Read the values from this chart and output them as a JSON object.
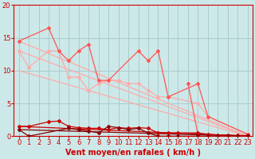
{
  "background_color": "#cde8e8",
  "grid_color": "#aacccc",
  "xlabel": "Vent moyen/en rafales ( km/h )",
  "xlabel_color": "#cc0000",
  "xlabel_fontsize": 7,
  "tick_color": "#cc0000",
  "tick_fontsize": 6,
  "xlim": [
    -0.5,
    23.5
  ],
  "ylim": [
    0,
    20
  ],
  "yticks": [
    0,
    5,
    10,
    15,
    20
  ],
  "xticks": [
    0,
    1,
    2,
    3,
    4,
    5,
    6,
    7,
    8,
    9,
    10,
    11,
    12,
    13,
    14,
    15,
    16,
    17,
    18,
    19,
    20,
    21,
    22,
    23
  ],
  "lines": [
    {
      "x": [
        0,
        3,
        4,
        5,
        6,
        7,
        8,
        9,
        12,
        13,
        14,
        15,
        18,
        19,
        23
      ],
      "y": [
        14.5,
        16.5,
        13,
        11.5,
        13,
        14,
        8.5,
        8.5,
        13,
        11.5,
        13,
        6,
        8,
        3,
        0.3
      ],
      "color": "#ff5555",
      "lw": 0.9,
      "marker": "D",
      "ms": 2.0,
      "zorder": 4
    },
    {
      "x": [
        0,
        1,
        3,
        4,
        5,
        6,
        7,
        8,
        9,
        10,
        11,
        12,
        13,
        14,
        15,
        18,
        19,
        23
      ],
      "y": [
        13,
        10.5,
        13,
        13,
        9,
        9,
        7,
        8,
        8.5,
        8.5,
        8,
        8,
        7,
        6,
        6,
        5,
        3,
        0.3
      ],
      "color": "#ffaaaa",
      "lw": 0.9,
      "marker": "D",
      "ms": 2.0,
      "zorder": 3
    },
    {
      "x": [
        0,
        23
      ],
      "y": [
        14.5,
        0
      ],
      "color": "#ffaaaa",
      "lw": 0.9,
      "marker": null,
      "ms": 0,
      "zorder": 2
    },
    {
      "x": [
        0,
        23
      ],
      "y": [
        10,
        0
      ],
      "color": "#ffaaaa",
      "lw": 0.9,
      "marker": null,
      "ms": 0,
      "zorder": 2
    },
    {
      "x": [
        0,
        23
      ],
      "y": [
        13,
        0
      ],
      "color": "#ffaaaa",
      "lw": 0.9,
      "marker": null,
      "ms": 0,
      "zorder": 2
    },
    {
      "x": [
        17,
        18
      ],
      "y": [
        8.0,
        0.2
      ],
      "color": "#ff5555",
      "lw": 0.9,
      "marker": "D",
      "ms": 2.0,
      "zorder": 4
    },
    {
      "x": [
        0,
        1,
        3,
        4,
        5,
        6,
        7,
        8,
        9,
        10,
        11,
        12,
        13,
        14,
        15,
        16,
        18,
        19,
        20,
        21,
        22,
        23
      ],
      "y": [
        1.5,
        1.5,
        2.2,
        2.3,
        1.5,
        1.3,
        1.2,
        1.2,
        1.0,
        1.3,
        1.2,
        1.3,
        1.2,
        0.5,
        0.5,
        0.5,
        0.5,
        0.3,
        0.2,
        0.2,
        0.1,
        0.1
      ],
      "color": "#cc0000",
      "lw": 0.9,
      "marker": "D",
      "ms": 2.0,
      "zorder": 6
    },
    {
      "x": [
        0,
        1,
        5,
        6,
        7,
        8,
        9,
        10,
        11,
        12,
        13,
        14,
        15,
        16,
        18,
        19,
        20,
        21,
        22,
        23
      ],
      "y": [
        1.0,
        0.0,
        1.2,
        1.0,
        0.8,
        0.5,
        1.5,
        1.3,
        1.0,
        1.2,
        0.5,
        0.0,
        0.0,
        0.0,
        0.0,
        0.0,
        0.0,
        0.0,
        0.0,
        0.0
      ],
      "color": "#880000",
      "lw": 0.9,
      "marker": "D",
      "ms": 2.0,
      "zorder": 6
    },
    {
      "x": [
        0,
        23
      ],
      "y": [
        1.5,
        0
      ],
      "color": "#cc0000",
      "lw": 0.9,
      "marker": null,
      "ms": 0,
      "zorder": 5
    },
    {
      "x": [
        0,
        23
      ],
      "y": [
        1.0,
        0
      ],
      "color": "#880000",
      "lw": 0.9,
      "marker": null,
      "ms": 0,
      "zorder": 5
    }
  ]
}
